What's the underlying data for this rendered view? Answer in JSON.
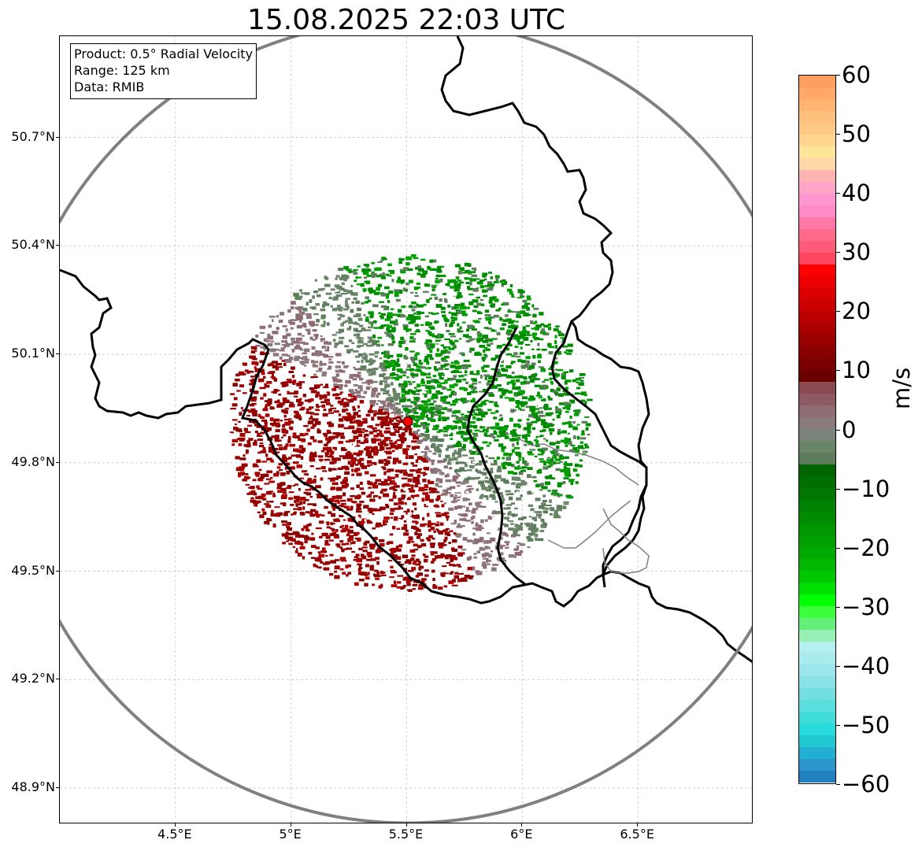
{
  "title": "15.08.2025 22:03 UTC",
  "info": {
    "product": "Product: 0.5° Radial Velocity",
    "range": "Range: 125 km",
    "data": "Data: RMIB"
  },
  "map": {
    "lon_range": [
      4.0,
      7.0
    ],
    "lat_range": [
      48.8,
      50.98
    ],
    "radar_site": {
      "lon": 5.505,
      "lat": 49.914
    },
    "range_ring_km": 125,
    "x_ticks": [
      {
        "lon": 4.5,
        "label": "4.5°E"
      },
      {
        "lon": 5.0,
        "label": "5°E"
      },
      {
        "lon": 5.5,
        "label": "5.5°E"
      },
      {
        "lon": 6.0,
        "label": "6°E"
      },
      {
        "lon": 6.5,
        "label": "6.5°E"
      }
    ],
    "y_ticks": [
      {
        "lat": 50.7,
        "label": "50.7°N"
      },
      {
        "lat": 50.4,
        "label": "50.4°N"
      },
      {
        "lat": 50.1,
        "label": "50.1°N"
      },
      {
        "lat": 49.8,
        "label": "49.8°N"
      },
      {
        "lat": 49.5,
        "label": "49.5°N"
      },
      {
        "lat": 49.2,
        "label": "49.2°N"
      },
      {
        "lat": 48.9,
        "label": "48.9°N"
      }
    ],
    "colors": {
      "range_ring": "#808080",
      "border": "#000000",
      "grid": "#c8c8c8",
      "radar_marker": "#ff0000"
    }
  },
  "colorbar": {
    "unit": "m/s",
    "min": -60,
    "max": 60,
    "ticks": [
      {
        "value": 60,
        "label": "60"
      },
      {
        "value": 50,
        "label": "50"
      },
      {
        "value": 40,
        "label": "40"
      },
      {
        "value": 30,
        "label": "30"
      },
      {
        "value": 20,
        "label": "20"
      },
      {
        "value": 10,
        "label": "10"
      },
      {
        "value": 0,
        "label": "0"
      },
      {
        "value": -10,
        "label": "−10"
      },
      {
        "value": -20,
        "label": "−20"
      },
      {
        "value": -30,
        "label": "−30"
      },
      {
        "value": -40,
        "label": "−40"
      },
      {
        "value": -50,
        "label": "−50"
      },
      {
        "value": -60,
        "label": "−60"
      }
    ],
    "segments": [
      {
        "from": 58,
        "to": 60,
        "color": "#ff9f5f"
      },
      {
        "from": 56,
        "to": 58,
        "color": "#ffa868"
      },
      {
        "from": 54,
        "to": 56,
        "color": "#ffb472"
      },
      {
        "from": 52,
        "to": 54,
        "color": "#ffbf7d"
      },
      {
        "from": 50,
        "to": 52,
        "color": "#ffc884"
      },
      {
        "from": 48,
        "to": 50,
        "color": "#ffd58f"
      },
      {
        "from": 46,
        "to": 48,
        "color": "#ffe59a"
      },
      {
        "from": 44,
        "to": 46,
        "color": "#ffd7a8"
      },
      {
        "from": 42,
        "to": 44,
        "color": "#ffb4b4"
      },
      {
        "from": 40,
        "to": 42,
        "color": "#ffa6c8"
      },
      {
        "from": 38,
        "to": 40,
        "color": "#ff96d2"
      },
      {
        "from": 36,
        "to": 38,
        "color": "#ff8cc8"
      },
      {
        "from": 34,
        "to": 36,
        "color": "#ff78a8"
      },
      {
        "from": 32,
        "to": 34,
        "color": "#ff6a8a"
      },
      {
        "from": 30,
        "to": 32,
        "color": "#ff5a78"
      },
      {
        "from": 28,
        "to": 30,
        "color": "#ff4660"
      },
      {
        "from": 26,
        "to": 28,
        "color": "#ff0000"
      },
      {
        "from": 24,
        "to": 26,
        "color": "#ee0000"
      },
      {
        "from": 22,
        "to": 24,
        "color": "#dd0000"
      },
      {
        "from": 20,
        "to": 22,
        "color": "#cc0000"
      },
      {
        "from": 18,
        "to": 20,
        "color": "#bb0000"
      },
      {
        "from": 16,
        "to": 18,
        "color": "#aa0000"
      },
      {
        "from": 14,
        "to": 16,
        "color": "#990000"
      },
      {
        "from": 12,
        "to": 14,
        "color": "#880000"
      },
      {
        "from": 10,
        "to": 12,
        "color": "#780000"
      },
      {
        "from": 8,
        "to": 10,
        "color": "#6a0000"
      },
      {
        "from": 6,
        "to": 8,
        "color": "#8a4a52"
      },
      {
        "from": 4,
        "to": 6,
        "color": "#8d5a62"
      },
      {
        "from": 2,
        "to": 4,
        "color": "#8f6c74"
      },
      {
        "from": 0,
        "to": 2,
        "color": "#8a7a7c"
      },
      {
        "from": -2,
        "to": 0,
        "color": "#7a8478"
      },
      {
        "from": -4,
        "to": -2,
        "color": "#6a8468"
      },
      {
        "from": -6,
        "to": -4,
        "color": "#5c7c5c"
      },
      {
        "from": -8,
        "to": -6,
        "color": "#006400"
      },
      {
        "from": -10,
        "to": -8,
        "color": "#006e00"
      },
      {
        "from": -12,
        "to": -10,
        "color": "#007800"
      },
      {
        "from": -14,
        "to": -12,
        "color": "#008200"
      },
      {
        "from": -16,
        "to": -14,
        "color": "#008c00"
      },
      {
        "from": -18,
        "to": -16,
        "color": "#009600"
      },
      {
        "from": -20,
        "to": -18,
        "color": "#00a000"
      },
      {
        "from": -22,
        "to": -20,
        "color": "#00aa00"
      },
      {
        "from": -24,
        "to": -22,
        "color": "#00b800"
      },
      {
        "from": -26,
        "to": -24,
        "color": "#00c800"
      },
      {
        "from": -28,
        "to": -26,
        "color": "#00e000"
      },
      {
        "from": -30,
        "to": -28,
        "color": "#00ff00"
      },
      {
        "from": -32,
        "to": -30,
        "color": "#3cff3c"
      },
      {
        "from": -34,
        "to": -32,
        "color": "#64f078"
      },
      {
        "from": -36,
        "to": -34,
        "color": "#96f0b4"
      },
      {
        "from": -38,
        "to": -36,
        "color": "#b4f0f0"
      },
      {
        "from": -40,
        "to": -38,
        "color": "#aaecee"
      },
      {
        "from": -42,
        "to": -40,
        "color": "#9ae6ea"
      },
      {
        "from": -44,
        "to": -42,
        "color": "#8ae2e6"
      },
      {
        "from": -46,
        "to": -44,
        "color": "#72dee2"
      },
      {
        "from": -48,
        "to": -46,
        "color": "#5adede"
      },
      {
        "from": -50,
        "to": -48,
        "color": "#40dcdc"
      },
      {
        "from": -52,
        "to": -50,
        "color": "#28dcdc"
      },
      {
        "from": -54,
        "to": -52,
        "color": "#20c8d2"
      },
      {
        "from": -56,
        "to": -54,
        "color": "#22b0d2"
      },
      {
        "from": -58,
        "to": -56,
        "color": "#2a96cc"
      },
      {
        "from": -60,
        "to": -58,
        "color": "#2080c0"
      }
    ]
  }
}
